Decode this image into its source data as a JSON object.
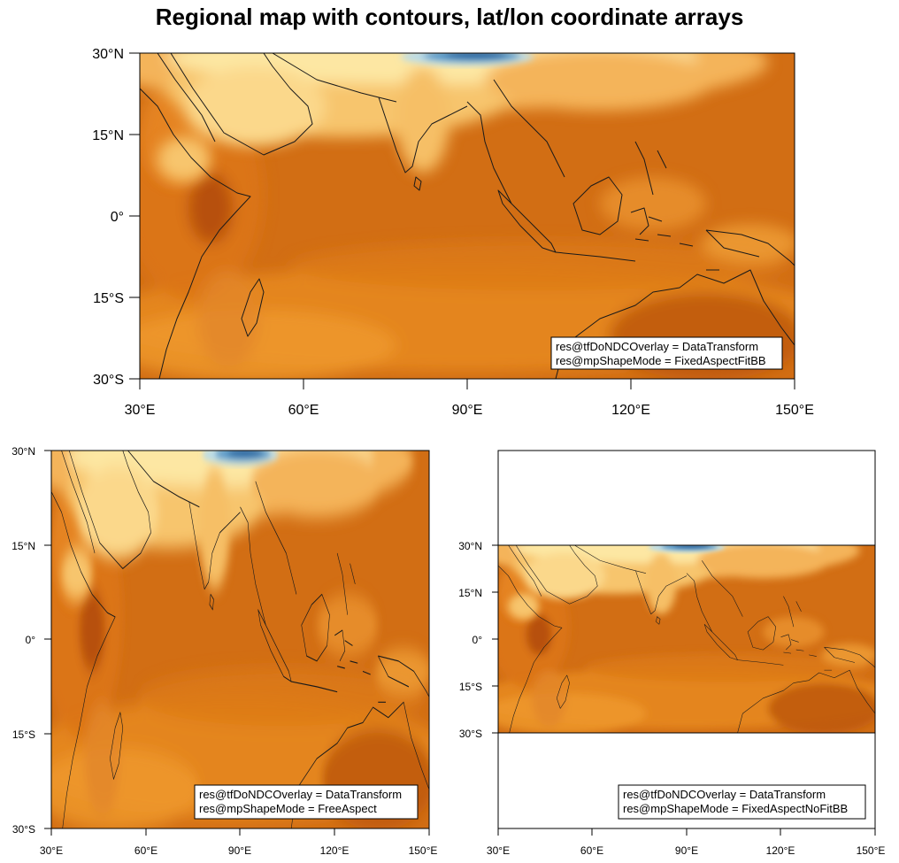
{
  "title": "Regional map with contours, lat/lon coordinate arrays",
  "colors": {
    "warm_dark": "#c75a0a",
    "warm_mid": "#e98a22",
    "warm_light": "#f4b45a",
    "pale": "#fde9a6",
    "cold": "#1c6aa6",
    "coast": "#1a1a1a"
  },
  "panels": [
    {
      "id": "top",
      "lat_labels": [
        "30°N",
        "15°N",
        "0°",
        "15°S",
        "30°S"
      ],
      "lon_labels": [
        "30°E",
        "60°E",
        "90°E",
        "120°E",
        "150°E"
      ],
      "legend": [
        "res@tfDoNDCOverlay = DataTransform",
        "res@mpShapeMode = FixedAspectFitBB"
      ]
    },
    {
      "id": "bottom-left",
      "lat_labels": [
        "30°N",
        "15°N",
        "0°",
        "15°S",
        "30°S"
      ],
      "lon_labels": [
        "30°E",
        "60°E",
        "90°E",
        "120°E",
        "150°E"
      ],
      "legend": [
        "res@tfDoNDCOverlay = DataTransform",
        "res@mpShapeMode = FreeAspect"
      ]
    },
    {
      "id": "bottom-right",
      "lat_labels": [
        "30°N",
        "15°N",
        "0°",
        "15°S",
        "30°S"
      ],
      "lon_labels": [
        "30°E",
        "60°E",
        "90°E",
        "120°E",
        "150°E"
      ],
      "legend": [
        "res@tfDoNDCOverlay = DataTransform",
        "res@mpShapeMode = FixedAspectNoFitBB"
      ]
    }
  ]
}
